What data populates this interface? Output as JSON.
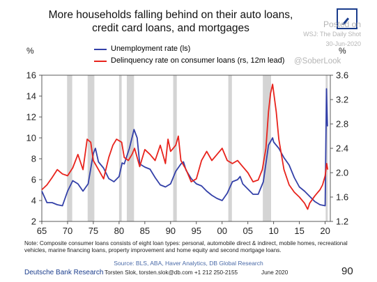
{
  "title": "More households falling behind on their auto loans, credit card loans, and mortgages",
  "posted": {
    "posted_on": "Posted on",
    "publication": "WSJ: The Daily Shot",
    "date": "30-Jun-2020"
  },
  "handle": "@SoberLook",
  "unit_left": "%",
  "unit_right": "%",
  "note": "Note: Composite consumer loans consists of eight loan types: personal, automobile direct & indirect, mobile homes, recreational vehicles, marine financing loans, property improvement and home equity and second mortgage loans.",
  "source": "Source: BLS, ABA, Haver Analytics, DB Global Research",
  "footer": {
    "brand": "Deutsche Bank Research",
    "contact": "Torsten Slok, torsten.slok@db.com +1 212 250-2155",
    "date": "June 2020",
    "page": "90"
  },
  "chart_data": {
    "type": "line",
    "xlim": [
      1965,
      2021
    ],
    "x_ticks": [
      1965,
      1970,
      1975,
      1980,
      1985,
      1990,
      1995,
      2000,
      2005,
      2010,
      2015,
      2020
    ],
    "x_tick_labels": [
      "65",
      "70",
      "75",
      "80",
      "85",
      "90",
      "95",
      "00",
      "05",
      "10",
      "15",
      "20"
    ],
    "ylim_left": [
      2,
      16
    ],
    "y_ticks_left": [
      2,
      4,
      6,
      8,
      10,
      12,
      14,
      16
    ],
    "ylim_right": [
      1.2,
      3.6
    ],
    "y_ticks_right": [
      1.2,
      1.6,
      2.0,
      2.4,
      2.8,
      3.2,
      3.6
    ],
    "y_tick_labels_right": [
      "1.2",
      "1.6",
      "2.0",
      "2.4",
      "2.8",
      "3.2",
      "3.6"
    ],
    "recessions": [
      [
        1969.9,
        1970.9
      ],
      [
        1973.9,
        1975.2
      ],
      [
        1980.0,
        1980.5
      ],
      [
        1981.5,
        1982.9
      ],
      [
        1990.5,
        1991.2
      ],
      [
        2001.2,
        2001.9
      ],
      [
        2007.9,
        2009.5
      ],
      [
        2020.1,
        2020.5
      ]
    ],
    "colors": {
      "unemployment": "#3340a8",
      "delinquency": "#e8231c",
      "recession": "#d4d4d4"
    },
    "series": [
      {
        "name": "Unemployment rate (ls)",
        "axis": "left",
        "x": [
          1965,
          1966,
          1967,
          1968,
          1969,
          1970,
          1971,
          1972,
          1973,
          1974,
          1975,
          1975.4,
          1976,
          1977,
          1978,
          1979,
          1980,
          1980.6,
          1981,
          1982,
          1982.9,
          1983.5,
          1984,
          1985,
          1986,
          1987,
          1988,
          1989,
          1990,
          1991,
          1992,
          1992.5,
          1993,
          1994,
          1995,
          1996,
          1997,
          1998,
          1999,
          2000,
          2001,
          2002,
          2003,
          2003.5,
          2004,
          2005,
          2006,
          2007,
          2008,
          2009,
          2009.8,
          2010,
          2011,
          2012,
          2013,
          2014,
          2015,
          2016,
          2017,
          2018,
          2019,
          2020.0,
          2020.25,
          2020.33,
          2020.45
        ],
        "y": [
          4.9,
          3.8,
          3.8,
          3.6,
          3.5,
          4.9,
          5.9,
          5.6,
          4.9,
          5.6,
          8.5,
          9.0,
          7.7,
          7.1,
          6.1,
          5.8,
          6.3,
          7.6,
          7.5,
          9.0,
          10.8,
          10.0,
          7.5,
          7.2,
          7.0,
          6.2,
          5.5,
          5.3,
          5.6,
          6.8,
          7.5,
          7.7,
          6.9,
          6.1,
          5.6,
          5.4,
          4.9,
          4.5,
          4.2,
          4.0,
          4.7,
          5.8,
          6.0,
          6.3,
          5.6,
          5.1,
          4.6,
          4.6,
          5.8,
          9.3,
          10.0,
          9.6,
          9.0,
          8.1,
          7.4,
          6.2,
          5.3,
          4.9,
          4.4,
          3.9,
          3.6,
          3.5,
          14.7,
          13.3,
          11.1
        ]
      },
      {
        "name": "Delinquency rate on consumer loans (rs, 12m lead)",
        "axis": "right",
        "x": [
          1965,
          1966,
          1967,
          1968,
          1969,
          1970,
          1971,
          1972,
          1973,
          1973.8,
          1974.5,
          1975,
          1976,
          1977,
          1978,
          1978.8,
          1979.5,
          1980.5,
          1981,
          1981.8,
          1982.5,
          1983,
          1984,
          1985,
          1986,
          1987,
          1988,
          1989,
          1989.5,
          1990,
          1991,
          1991.5,
          1992,
          1993,
          1994,
          1995,
          1996,
          1997,
          1998,
          1999,
          2000,
          2001,
          2002,
          2003,
          2004,
          2005,
          2006,
          2007,
          2007.8,
          2008.5,
          2009,
          2009.4,
          2009.8,
          2010.5,
          2011,
          2012,
          2013,
          2014,
          2015,
          2016,
          2016.6,
          2017,
          2018,
          2019,
          2019.5,
          2020.0,
          2020.3,
          2020.5
        ],
        "y": [
          1.72,
          1.8,
          1.92,
          2.05,
          1.98,
          1.95,
          2.08,
          2.3,
          2.05,
          2.55,
          2.5,
          2.2,
          2.05,
          1.9,
          2.25,
          2.45,
          2.55,
          2.5,
          2.25,
          2.2,
          2.3,
          2.4,
          2.1,
          2.38,
          2.3,
          2.2,
          2.45,
          2.15,
          2.55,
          2.35,
          2.45,
          2.6,
          2.2,
          2.05,
          1.85,
          1.9,
          2.2,
          2.35,
          2.2,
          2.3,
          2.4,
          2.2,
          2.15,
          2.2,
          2.1,
          2.0,
          1.85,
          1.88,
          2.05,
          2.4,
          3.0,
          3.3,
          3.45,
          3.0,
          2.55,
          2.05,
          1.8,
          1.68,
          1.6,
          1.5,
          1.4,
          1.5,
          1.62,
          1.72,
          1.8,
          1.95,
          2.15,
          2.05
        ]
      }
    ]
  }
}
